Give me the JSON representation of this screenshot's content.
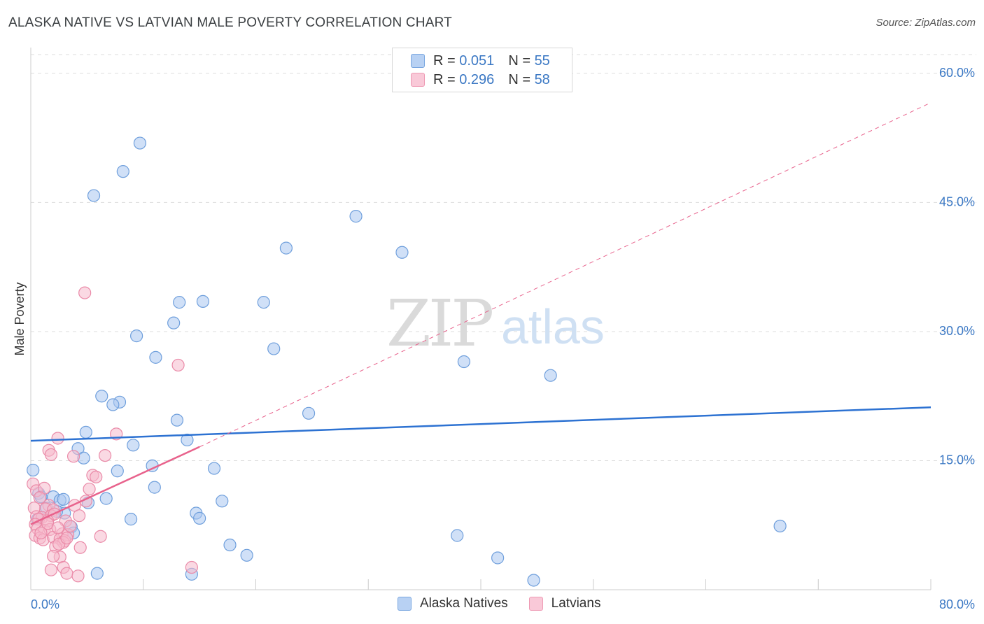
{
  "title": "ALASKA NATIVE VS LATVIAN MALE POVERTY CORRELATION CHART",
  "source": "Source: ZipAtlas.com",
  "watermark": {
    "zip": "ZIP",
    "atlas": "atlas"
  },
  "legend_top": [
    {
      "r_label": "R = ",
      "r_value": "0.051",
      "n_label": "N = ",
      "n_value": "55"
    },
    {
      "r_label": "R = ",
      "r_value": "0.296",
      "n_label": "N = ",
      "n_value": "58"
    }
  ],
  "colors": {
    "blue_fill": "#a9c6f0",
    "blue_stroke": "#6f9fdc",
    "blue_line": "#2d72d2",
    "pink_fill": "#f6b9cc",
    "pink_stroke": "#ea8aa8",
    "pink_line": "#e8628c",
    "grid": "#dddddd",
    "tick_label": "#3b78c4"
  },
  "chart_data": {
    "type": "scatter",
    "title": "ALASKA NATIVE VS LATVIAN MALE POVERTY CORRELATION CHART",
    "xlabel": "",
    "ylabel": "Male Poverty",
    "xlim": [
      0,
      80
    ],
    "ylim": [
      0,
      63
    ],
    "x_tick_labels": [
      {
        "value": 0,
        "label": "0.0%"
      },
      {
        "value": 80,
        "label": "80.0%"
      }
    ],
    "y_tick_labels": [
      {
        "value": 15,
        "label": "15.0%"
      },
      {
        "value": 30,
        "label": "30.0%"
      },
      {
        "value": 45,
        "label": "45.0%"
      },
      {
        "value": 60,
        "label": "60.0%"
      }
    ],
    "series": [
      {
        "name": "Alaska Natives",
        "r": 0.051,
        "n": 55,
        "trend": {
          "x0": 0,
          "y0": 17.3,
          "x1": 80,
          "y1": 21.2
        },
        "points": [
          [
            9.7,
            51.9
          ],
          [
            8.2,
            48.6
          ],
          [
            5.6,
            45.8
          ],
          [
            28.9,
            43.4
          ],
          [
            22.7,
            39.7
          ],
          [
            33.0,
            39.2
          ],
          [
            13.2,
            33.4
          ],
          [
            15.3,
            33.5
          ],
          [
            20.7,
            33.4
          ],
          [
            12.7,
            31.0
          ],
          [
            9.4,
            29.5
          ],
          [
            11.1,
            27.0
          ],
          [
            21.6,
            28.0
          ],
          [
            38.5,
            26.5
          ],
          [
            46.2,
            24.9
          ],
          [
            6.3,
            22.5
          ],
          [
            7.9,
            21.8
          ],
          [
            7.3,
            21.5
          ],
          [
            24.7,
            20.5
          ],
          [
            13.0,
            19.7
          ],
          [
            4.9,
            18.3
          ],
          [
            13.9,
            17.4
          ],
          [
            9.1,
            16.8
          ],
          [
            4.2,
            16.4
          ],
          [
            4.7,
            15.3
          ],
          [
            0.2,
            13.9
          ],
          [
            10.8,
            14.4
          ],
          [
            16.3,
            14.1
          ],
          [
            7.7,
            13.8
          ],
          [
            11.0,
            11.9
          ],
          [
            0.7,
            11.2
          ],
          [
            0.9,
            10.8
          ],
          [
            2.0,
            10.8
          ],
          [
            2.6,
            10.4
          ],
          [
            2.9,
            10.5
          ],
          [
            6.7,
            10.6
          ],
          [
            5.1,
            10.1
          ],
          [
            17.0,
            10.3
          ],
          [
            1.4,
            9.5
          ],
          [
            3.0,
            8.9
          ],
          [
            14.7,
            8.9
          ],
          [
            15.0,
            8.3
          ],
          [
            8.9,
            8.2
          ],
          [
            3.6,
            7.3
          ],
          [
            3.8,
            6.6
          ],
          [
            66.6,
            7.4
          ],
          [
            37.9,
            6.3
          ],
          [
            17.7,
            5.2
          ],
          [
            19.2,
            4.0
          ],
          [
            41.5,
            3.7
          ],
          [
            5.9,
            1.9
          ],
          [
            14.3,
            1.8
          ],
          [
            44.7,
            1.1
          ],
          [
            0.6,
            8.2
          ],
          [
            2.3,
            9.1
          ]
        ]
      },
      {
        "name": "Latvians",
        "r": 0.296,
        "n": 58,
        "trend": {
          "x0": 0,
          "y0": 7.6,
          "x1": 15,
          "y1": 16.6
        },
        "trend_extended": {
          "x0": 15,
          "y0": 16.6,
          "x1": 80,
          "y1": 56.6
        },
        "points": [
          [
            4.8,
            34.5
          ],
          [
            13.1,
            26.1
          ],
          [
            2.4,
            17.6
          ],
          [
            7.6,
            18.1
          ],
          [
            1.6,
            16.2
          ],
          [
            1.8,
            15.7
          ],
          [
            3.8,
            15.5
          ],
          [
            6.6,
            15.6
          ],
          [
            5.5,
            13.3
          ],
          [
            5.8,
            13.1
          ],
          [
            0.2,
            12.3
          ],
          [
            0.5,
            11.5
          ],
          [
            1.2,
            11.8
          ],
          [
            0.8,
            10.7
          ],
          [
            5.2,
            11.7
          ],
          [
            4.9,
            10.3
          ],
          [
            1.6,
            9.8
          ],
          [
            1.3,
            9.4
          ],
          [
            2.0,
            9.3
          ],
          [
            0.3,
            9.5
          ],
          [
            3.9,
            9.8
          ],
          [
            0.5,
            8.5
          ],
          [
            1.0,
            8.4
          ],
          [
            1.8,
            8.6
          ],
          [
            2.1,
            8.8
          ],
          [
            0.7,
            8.2
          ],
          [
            1.5,
            8.0
          ],
          [
            0.4,
            7.6
          ],
          [
            3.1,
            8.0
          ],
          [
            4.3,
            8.6
          ],
          [
            0.6,
            7.1
          ],
          [
            1.2,
            6.9
          ],
          [
            1.7,
            7.0
          ],
          [
            2.8,
            6.5
          ],
          [
            0.4,
            6.3
          ],
          [
            0.8,
            6.0
          ],
          [
            1.1,
            5.8
          ],
          [
            2.0,
            6.1
          ],
          [
            2.6,
            5.9
          ],
          [
            3.3,
            6.4
          ],
          [
            3.0,
            5.7
          ],
          [
            2.9,
            5.5
          ],
          [
            2.2,
            5.0
          ],
          [
            2.5,
            5.3
          ],
          [
            3.2,
            6.0
          ],
          [
            6.2,
            6.2
          ],
          [
            4.4,
            4.9
          ],
          [
            2.6,
            3.8
          ],
          [
            2.0,
            3.9
          ],
          [
            2.9,
            2.6
          ],
          [
            1.8,
            2.3
          ],
          [
            3.2,
            1.9
          ],
          [
            4.2,
            1.6
          ],
          [
            14.3,
            2.6
          ],
          [
            1.5,
            7.7
          ],
          [
            2.4,
            7.2
          ],
          [
            0.9,
            6.6
          ],
          [
            3.5,
            7.4
          ]
        ]
      }
    ]
  },
  "legend_bottom": [
    "Alaska Natives",
    "Latvians"
  ]
}
